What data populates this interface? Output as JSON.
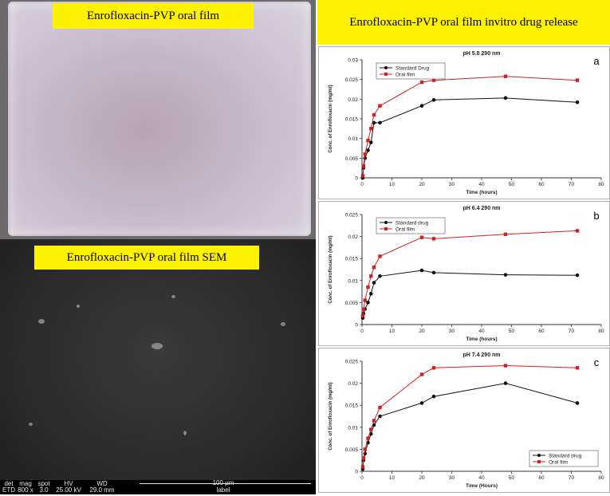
{
  "labels": {
    "film_title": "Enrofloxacin-PVP oral film",
    "sem_title": "Enrofloxacin-PVP oral film SEM",
    "release_title": "Enrofloxacin-PVP oral film invitro drug release"
  },
  "sem_bar": {
    "det_label": "det",
    "det_value": "ETD",
    "mag_label": "mag",
    "mag_value": "800 x",
    "spot_label": "spot",
    "spot_value": "3.0",
    "hv_label": "HV",
    "hv_value": "25.00 kV",
    "wd_label": "WD",
    "wd_value": "29.0 mm",
    "scale_value": "100 µm",
    "scale_caption": "label"
  },
  "colors": {
    "standard": "#111111",
    "film": "#cc2222",
    "highlight": "#fff200"
  },
  "chart_data": [
    {
      "type": "line",
      "panel_letter": "a",
      "title": "pH 5.8   290 nm",
      "xlabel": "Time (hours)",
      "ylabel": "Conc. of Enrofloxacin (mg/ml)",
      "xlim": [
        0,
        80
      ],
      "ylim": [
        0,
        0.03
      ],
      "xticks": [
        "0",
        "10",
        "20",
        "30",
        "40",
        "50",
        "60",
        "70",
        "80"
      ],
      "yticks": [
        "0",
        "0.005",
        "0.01",
        "0.015",
        "0.02",
        "0.025",
        "0.03"
      ],
      "legend_position": "top-left",
      "series": [
        {
          "name": "Standard Drug",
          "color": "#111111",
          "marker": "circle",
          "x": [
            0.25,
            0.5,
            1,
            2,
            3,
            4,
            6,
            20,
            24,
            48,
            72
          ],
          "y": [
            0.0,
            0.0025,
            0.005,
            0.007,
            0.009,
            0.014,
            0.014,
            0.0183,
            0.0198,
            0.0203,
            0.0192
          ]
        },
        {
          "name": "Oral film",
          "color": "#cc2222",
          "marker": "square",
          "x": [
            0.25,
            0.5,
            1,
            2,
            3,
            4,
            6,
            20,
            24,
            48,
            72
          ],
          "y": [
            0.0005,
            0.003,
            0.006,
            0.0095,
            0.0125,
            0.016,
            0.0183,
            0.0243,
            0.0248,
            0.0258,
            0.0248
          ]
        }
      ]
    },
    {
      "type": "line",
      "panel_letter": "b",
      "title": "pH 6.4   290 nm",
      "xlabel": "Time (hours)",
      "ylabel": "Conc. of Enrofloxacin (mg/ml)",
      "xlim": [
        0,
        80
      ],
      "ylim": [
        0,
        0.025
      ],
      "xticks": [
        "0",
        "10",
        "20",
        "30",
        "40",
        "50",
        "60",
        "70",
        "80"
      ],
      "yticks": [
        "0",
        "0.005",
        "0.01",
        "0.015",
        "0.02",
        "0.025"
      ],
      "legend_position": "top-left",
      "series": [
        {
          "name": "Standard drug",
          "color": "#111111",
          "marker": "circle",
          "x": [
            0.25,
            0.5,
            1,
            2,
            3,
            4,
            6,
            20,
            24,
            48,
            72
          ],
          "y": [
            0.0015,
            0.0025,
            0.0035,
            0.005,
            0.007,
            0.0095,
            0.011,
            0.0123,
            0.0118,
            0.0113,
            0.0112
          ]
        },
        {
          "name": "Oral film",
          "color": "#cc2222",
          "marker": "square",
          "x": [
            0.25,
            0.5,
            1,
            2,
            3,
            4,
            6,
            20,
            24,
            48,
            72
          ],
          "y": [
            0.002,
            0.0035,
            0.0055,
            0.0085,
            0.011,
            0.013,
            0.0155,
            0.0198,
            0.0195,
            0.0205,
            0.0213
          ]
        }
      ]
    },
    {
      "type": "line",
      "panel_letter": "c",
      "title": "pH 7.4   290 nm",
      "xlabel": "Time (Hours)",
      "ylabel": "Conc. of Enrofloxacin (mg/ml)",
      "xlim": [
        0,
        80
      ],
      "ylim": [
        0,
        0.025
      ],
      "xticks": [
        "0",
        "10",
        "20",
        "30",
        "40",
        "50",
        "60",
        "70",
        "80"
      ],
      "yticks": [
        "0",
        "0.005",
        "0.01",
        "0.015",
        "0.02",
        "0.025"
      ],
      "legend_position": "bottom-right",
      "series": [
        {
          "name": "Standard drug",
          "color": "#111111",
          "marker": "circle",
          "x": [
            0.25,
            0.5,
            1,
            2,
            3,
            4,
            6,
            20,
            24,
            48,
            72
          ],
          "y": [
            0.0005,
            0.0025,
            0.004,
            0.0065,
            0.0085,
            0.0105,
            0.0125,
            0.0155,
            0.017,
            0.02,
            0.0155
          ]
        },
        {
          "name": "Oral film",
          "color": "#cc2222",
          "marker": "square",
          "x": [
            0.25,
            0.5,
            1,
            2,
            3,
            4,
            6,
            20,
            24,
            48,
            72
          ],
          "y": [
            0.001,
            0.003,
            0.005,
            0.0075,
            0.0095,
            0.0115,
            0.0145,
            0.022,
            0.0235,
            0.024,
            0.0235
          ]
        }
      ]
    }
  ]
}
